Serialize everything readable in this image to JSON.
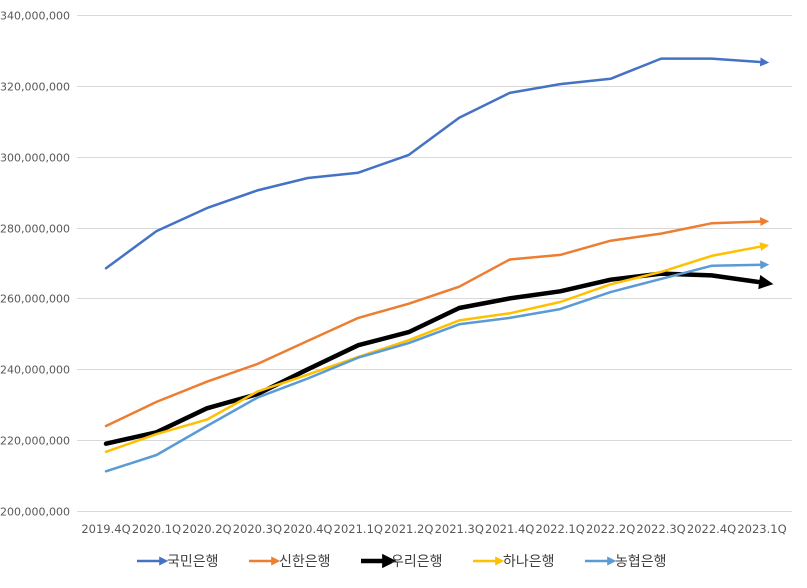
{
  "chart_data": {
    "type": "line",
    "categories": [
      "2019.4Q",
      "2020.1Q",
      "2020.2Q",
      "2020.3Q",
      "2020.4Q",
      "2021.1Q",
      "2021.2Q",
      "2021.3Q",
      "2021.4Q",
      "2022.1Q",
      "2022.2Q",
      "2022.3Q",
      "2022.4Q",
      "2023.1Q"
    ],
    "ylim": [
      200000000,
      340000000
    ],
    "yticks": [
      200000000,
      220000000,
      240000000,
      260000000,
      280000000,
      300000000,
      320000000,
      340000000
    ],
    "ytick_labels": [
      "200,000,000",
      "220,000,000",
      "240,000,000",
      "260,000,000",
      "280,000,000",
      "300,000,000",
      "320,000,000",
      "340,000,000"
    ],
    "grid": true,
    "legend_position": "bottom",
    "series": [
      {
        "name": "국민은행",
        "color": "#4472C4",
        "emphasis": false,
        "values": [
          268500000,
          279000000,
          285500000,
          290500000,
          294000000,
          295500000,
          300500000,
          311000000,
          318000000,
          320500000,
          322000000,
          327700000,
          327700000,
          326700000
        ]
      },
      {
        "name": "신한은행",
        "color": "#ED7D31",
        "emphasis": false,
        "values": [
          224000000,
          230800000,
          236500000,
          241500000,
          248000000,
          254500000,
          258500000,
          263300000,
          271000000,
          272300000,
          276300000,
          278300000,
          281200000,
          281700000
        ]
      },
      {
        "name": "우리은행",
        "color": "#000000",
        "emphasis": true,
        "values": [
          219000000,
          222200000,
          229000000,
          233000000,
          240000000,
          246800000,
          250500000,
          257300000,
          260000000,
          262000000,
          265300000,
          267000000,
          266500000,
          264500000
        ]
      },
      {
        "name": "하나은행",
        "color": "#FFC000",
        "emphasis": false,
        "values": [
          216700000,
          221700000,
          225800000,
          233700000,
          238500000,
          243500000,
          248200000,
          253800000,
          255800000,
          259000000,
          264000000,
          267500000,
          272000000,
          274700000
        ]
      },
      {
        "name": "농협은행",
        "color": "#5B9BD5",
        "emphasis": false,
        "values": [
          211200000,
          215800000,
          224000000,
          232000000,
          237400000,
          243300000,
          247400000,
          252700000,
          254500000,
          257000000,
          261800000,
          265500000,
          269200000,
          269500000
        ]
      }
    ]
  }
}
